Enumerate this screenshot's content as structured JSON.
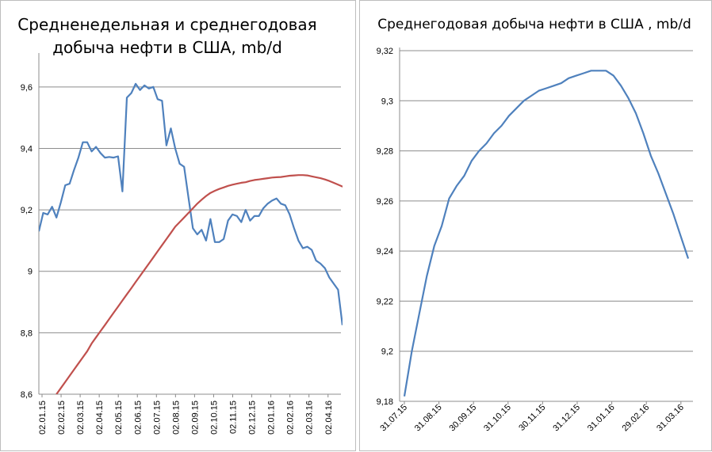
{
  "chart_data": [
    {
      "type": "line",
      "title_line1": "Средненедельная и среднегодовая",
      "title_line2": "добыча нефти в США, mb/d",
      "ylim": [
        8.6,
        9.7
      ],
      "yticks": [
        "8,6",
        "8,8",
        "9",
        "9,2",
        "9,4",
        "9,6"
      ],
      "ytick_values": [
        8.6,
        8.8,
        9.0,
        9.2,
        9.4,
        9.6
      ],
      "xticks": [
        "02.01.15",
        "02.02.15",
        "02.03.15",
        "02.04.15",
        "02.05.15",
        "02.06.15",
        "02.07.15",
        "02.08.15",
        "02.09.15",
        "02.10.15",
        "02.11.15",
        "02.12.15",
        "02.01.16",
        "02.02.16",
        "02.03.16",
        "02.04.16"
      ],
      "grid": true,
      "legend": "none",
      "series": [
        {
          "color": "#4f81bd",
          "values": [
            9.13,
            9.19,
            9.185,
            9.21,
            9.175,
            9.225,
            9.28,
            9.285,
            9.33,
            9.37,
            9.42,
            9.42,
            9.39,
            9.405,
            9.385,
            9.37,
            9.372,
            9.37,
            9.374,
            9.26,
            9.565,
            9.58,
            9.61,
            9.59,
            9.605,
            9.595,
            9.6,
            9.56,
            9.555,
            9.41,
            9.465,
            9.4,
            9.35,
            9.34,
            9.24,
            9.14,
            9.12,
            9.135,
            9.1,
            9.17,
            9.095,
            9.095,
            9.105,
            9.165,
            9.185,
            9.18,
            9.16,
            9.2,
            9.165,
            9.18,
            9.18,
            9.205,
            9.22,
            9.23,
            9.237,
            9.22,
            9.215,
            9.185,
            9.14,
            9.1,
            9.075,
            9.08,
            9.07,
            9.035,
            9.025,
            9.01,
            8.98,
            8.96,
            8.94,
            8.825
          ]
        },
        {
          "color": "#c0504d",
          "start_index": 4,
          "values": [
            8.6,
            8.62,
            8.64,
            8.66,
            8.68,
            8.7,
            8.72,
            8.74,
            8.765,
            8.785,
            8.805,
            8.825,
            8.845,
            8.865,
            8.885,
            8.905,
            8.925,
            8.945,
            8.965,
            8.985,
            9.005,
            9.025,
            9.045,
            9.065,
            9.085,
            9.105,
            9.125,
            9.145,
            9.16,
            9.175,
            9.19,
            9.205,
            9.22,
            9.233,
            9.245,
            9.255,
            9.262,
            9.268,
            9.273,
            9.278,
            9.282,
            9.285,
            9.288,
            9.29,
            9.294,
            9.297,
            9.299,
            9.301,
            9.303,
            9.305,
            9.306,
            9.307,
            9.309,
            9.311,
            9.312,
            9.313,
            9.313,
            9.312,
            9.309,
            9.306,
            9.303,
            9.299,
            9.294,
            9.288,
            9.282,
            9.276,
            9.27,
            9.262,
            9.254,
            9.245,
            9.237
          ]
        }
      ]
    },
    {
      "type": "line",
      "title": "Среднегодовая добыча нефти в США , mb/d",
      "ylim": [
        9.18,
        9.32
      ],
      "yticks": [
        "9,18",
        "9,2",
        "9,22",
        "9,24",
        "9,26",
        "9,28",
        "9,3",
        "9,32"
      ],
      "ytick_values": [
        9.18,
        9.2,
        9.22,
        9.24,
        9.26,
        9.28,
        9.3,
        9.32
      ],
      "xticks": [
        "31.07.15",
        "31.08.15",
        "30.09.15",
        "31.10.15",
        "30.11.15",
        "31.12.15",
        "31.01.16",
        "29.02.16",
        "31.03.16"
      ],
      "grid": true,
      "legend": "none",
      "series": [
        {
          "color": "#4f81bd",
          "values": [
            9.182,
            9.2,
            9.215,
            9.23,
            9.242,
            9.25,
            9.261,
            9.266,
            9.27,
            9.276,
            9.28,
            9.283,
            9.287,
            9.29,
            9.294,
            9.297,
            9.3,
            9.302,
            9.304,
            9.305,
            9.306,
            9.307,
            9.309,
            9.31,
            9.311,
            9.312,
            9.312,
            9.312,
            9.31,
            9.306,
            9.301,
            9.295,
            9.287,
            9.278,
            9.271,
            9.263,
            9.255,
            9.246,
            9.237
          ]
        }
      ]
    }
  ]
}
